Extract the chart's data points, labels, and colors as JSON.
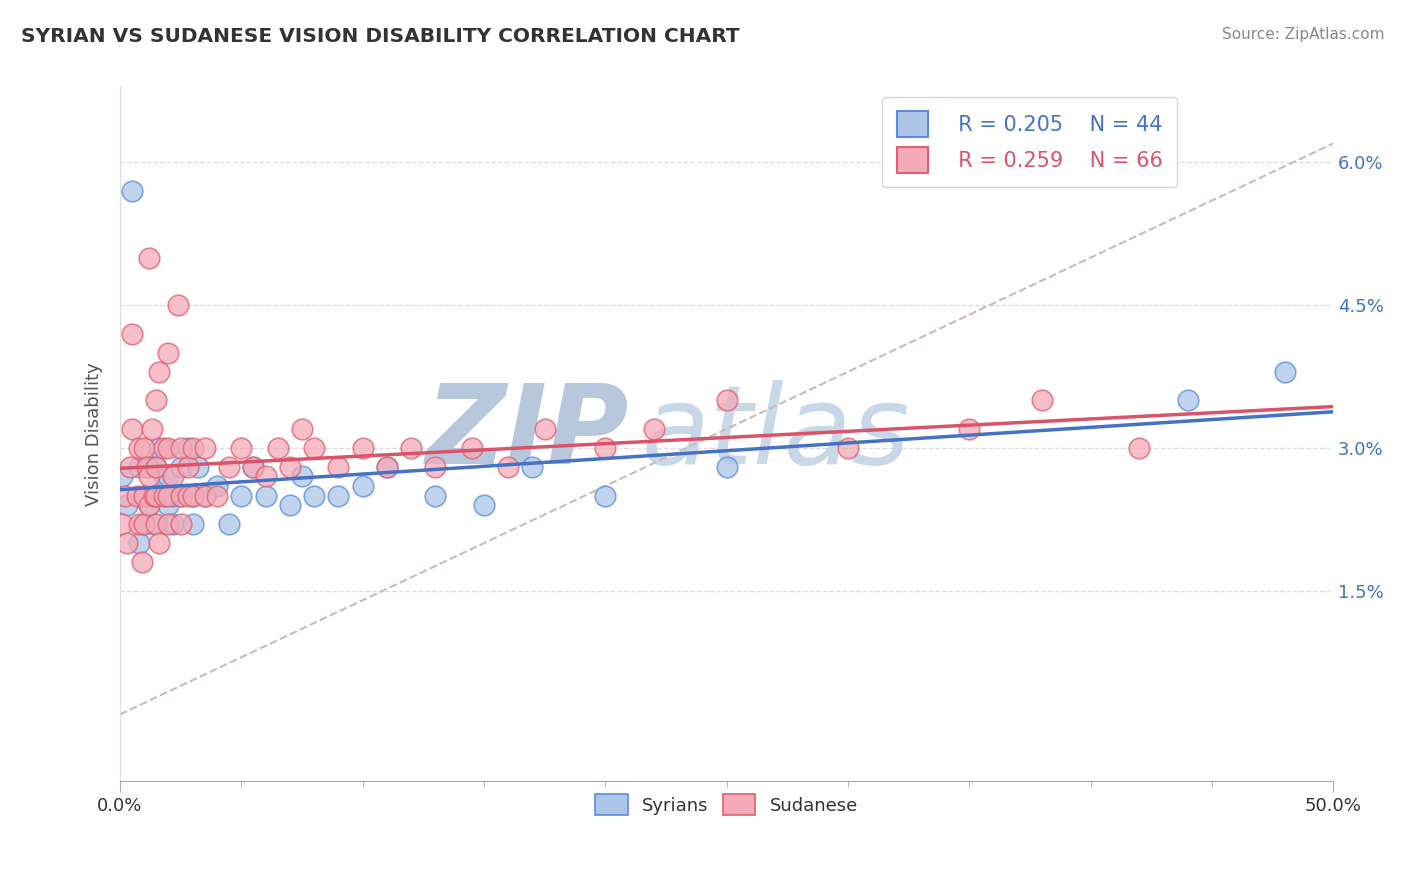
{
  "title": "SYRIAN VS SUDANESE VISION DISABILITY CORRELATION CHART",
  "source": "Source: ZipAtlas.com",
  "ylabel": "Vision Disability",
  "xlim": [
    0,
    0.5
  ],
  "ylim": [
    -0.005,
    0.068
  ],
  "ytick_vals": [
    0.015,
    0.03,
    0.045,
    0.06
  ],
  "ytick_labels": [
    "1.5%",
    "3.0%",
    "4.5%",
    "6.0%"
  ],
  "xtick_vals": [
    0.0,
    0.5
  ],
  "xtick_labels": [
    "0.0%",
    "50.0%"
  ],
  "xtick_minor_step": 0.05,
  "legend_labels": [
    "Syrians",
    "Sudanese"
  ],
  "legend_r": [
    "R = 0.205",
    "N = 44"
  ],
  "legend_r2": [
    "R = 0.259",
    "N = 66"
  ],
  "syrian_fill": "#adc6e8",
  "sudanese_fill": "#f4aab8",
  "syrian_edge": "#5b8dd9",
  "sudanese_edge": "#e06070",
  "syrian_line": "#4472c4",
  "sudanese_line": "#d9546a",
  "diagonal_color": "#ccbbbb",
  "grid_color": "#dddddd",
  "background": "#ffffff",
  "title_color": "#333333",
  "source_color": "#888888",
  "tick_label_color": "#4472c4",
  "watermark_zip_color": "#b8c8dc",
  "watermark_atlas_color": "#c8d8e8",
  "syrians_x": [
    0.001,
    0.003,
    0.005,
    0.008,
    0.008,
    0.01,
    0.01,
    0.012,
    0.012,
    0.014,
    0.015,
    0.015,
    0.016,
    0.018,
    0.018,
    0.02,
    0.02,
    0.022,
    0.022,
    0.025,
    0.025,
    0.028,
    0.03,
    0.03,
    0.032,
    0.035,
    0.04,
    0.045,
    0.05,
    0.055,
    0.06,
    0.07,
    0.075,
    0.08,
    0.09,
    0.1,
    0.11,
    0.13,
    0.15,
    0.17,
    0.2,
    0.25,
    0.44,
    0.48
  ],
  "syrians_y": [
    0.027,
    0.024,
    0.057,
    0.02,
    0.028,
    0.022,
    0.025,
    0.024,
    0.028,
    0.022,
    0.025,
    0.028,
    0.03,
    0.027,
    0.025,
    0.024,
    0.027,
    0.025,
    0.022,
    0.025,
    0.028,
    0.03,
    0.025,
    0.022,
    0.028,
    0.025,
    0.026,
    0.022,
    0.025,
    0.028,
    0.025,
    0.024,
    0.027,
    0.025,
    0.025,
    0.026,
    0.028,
    0.025,
    0.024,
    0.028,
    0.025,
    0.028,
    0.035,
    0.038
  ],
  "sudanese_x": [
    0.001,
    0.002,
    0.003,
    0.004,
    0.005,
    0.005,
    0.007,
    0.008,
    0.008,
    0.009,
    0.01,
    0.01,
    0.01,
    0.011,
    0.012,
    0.012,
    0.013,
    0.014,
    0.015,
    0.015,
    0.015,
    0.015,
    0.016,
    0.018,
    0.018,
    0.02,
    0.02,
    0.02,
    0.022,
    0.025,
    0.025,
    0.025,
    0.028,
    0.028,
    0.03,
    0.03,
    0.035,
    0.035,
    0.04,
    0.045,
    0.05,
    0.055,
    0.06,
    0.065,
    0.07,
    0.075,
    0.08,
    0.09,
    0.1,
    0.11,
    0.12,
    0.13,
    0.145,
    0.16,
    0.175,
    0.2,
    0.22,
    0.25,
    0.3,
    0.35,
    0.38,
    0.42,
    0.012,
    0.016,
    0.02,
    0.024
  ],
  "sudanese_y": [
    0.022,
    0.025,
    0.02,
    0.028,
    0.042,
    0.032,
    0.025,
    0.022,
    0.03,
    0.018,
    0.022,
    0.025,
    0.03,
    0.028,
    0.024,
    0.027,
    0.032,
    0.025,
    0.022,
    0.025,
    0.028,
    0.035,
    0.02,
    0.025,
    0.03,
    0.022,
    0.025,
    0.03,
    0.027,
    0.022,
    0.025,
    0.03,
    0.025,
    0.028,
    0.025,
    0.03,
    0.025,
    0.03,
    0.025,
    0.028,
    0.03,
    0.028,
    0.027,
    0.03,
    0.028,
    0.032,
    0.03,
    0.028,
    0.03,
    0.028,
    0.03,
    0.028,
    0.03,
    0.028,
    0.032,
    0.03,
    0.032,
    0.035,
    0.03,
    0.032,
    0.035,
    0.03,
    0.05,
    0.038,
    0.04,
    0.045
  ]
}
